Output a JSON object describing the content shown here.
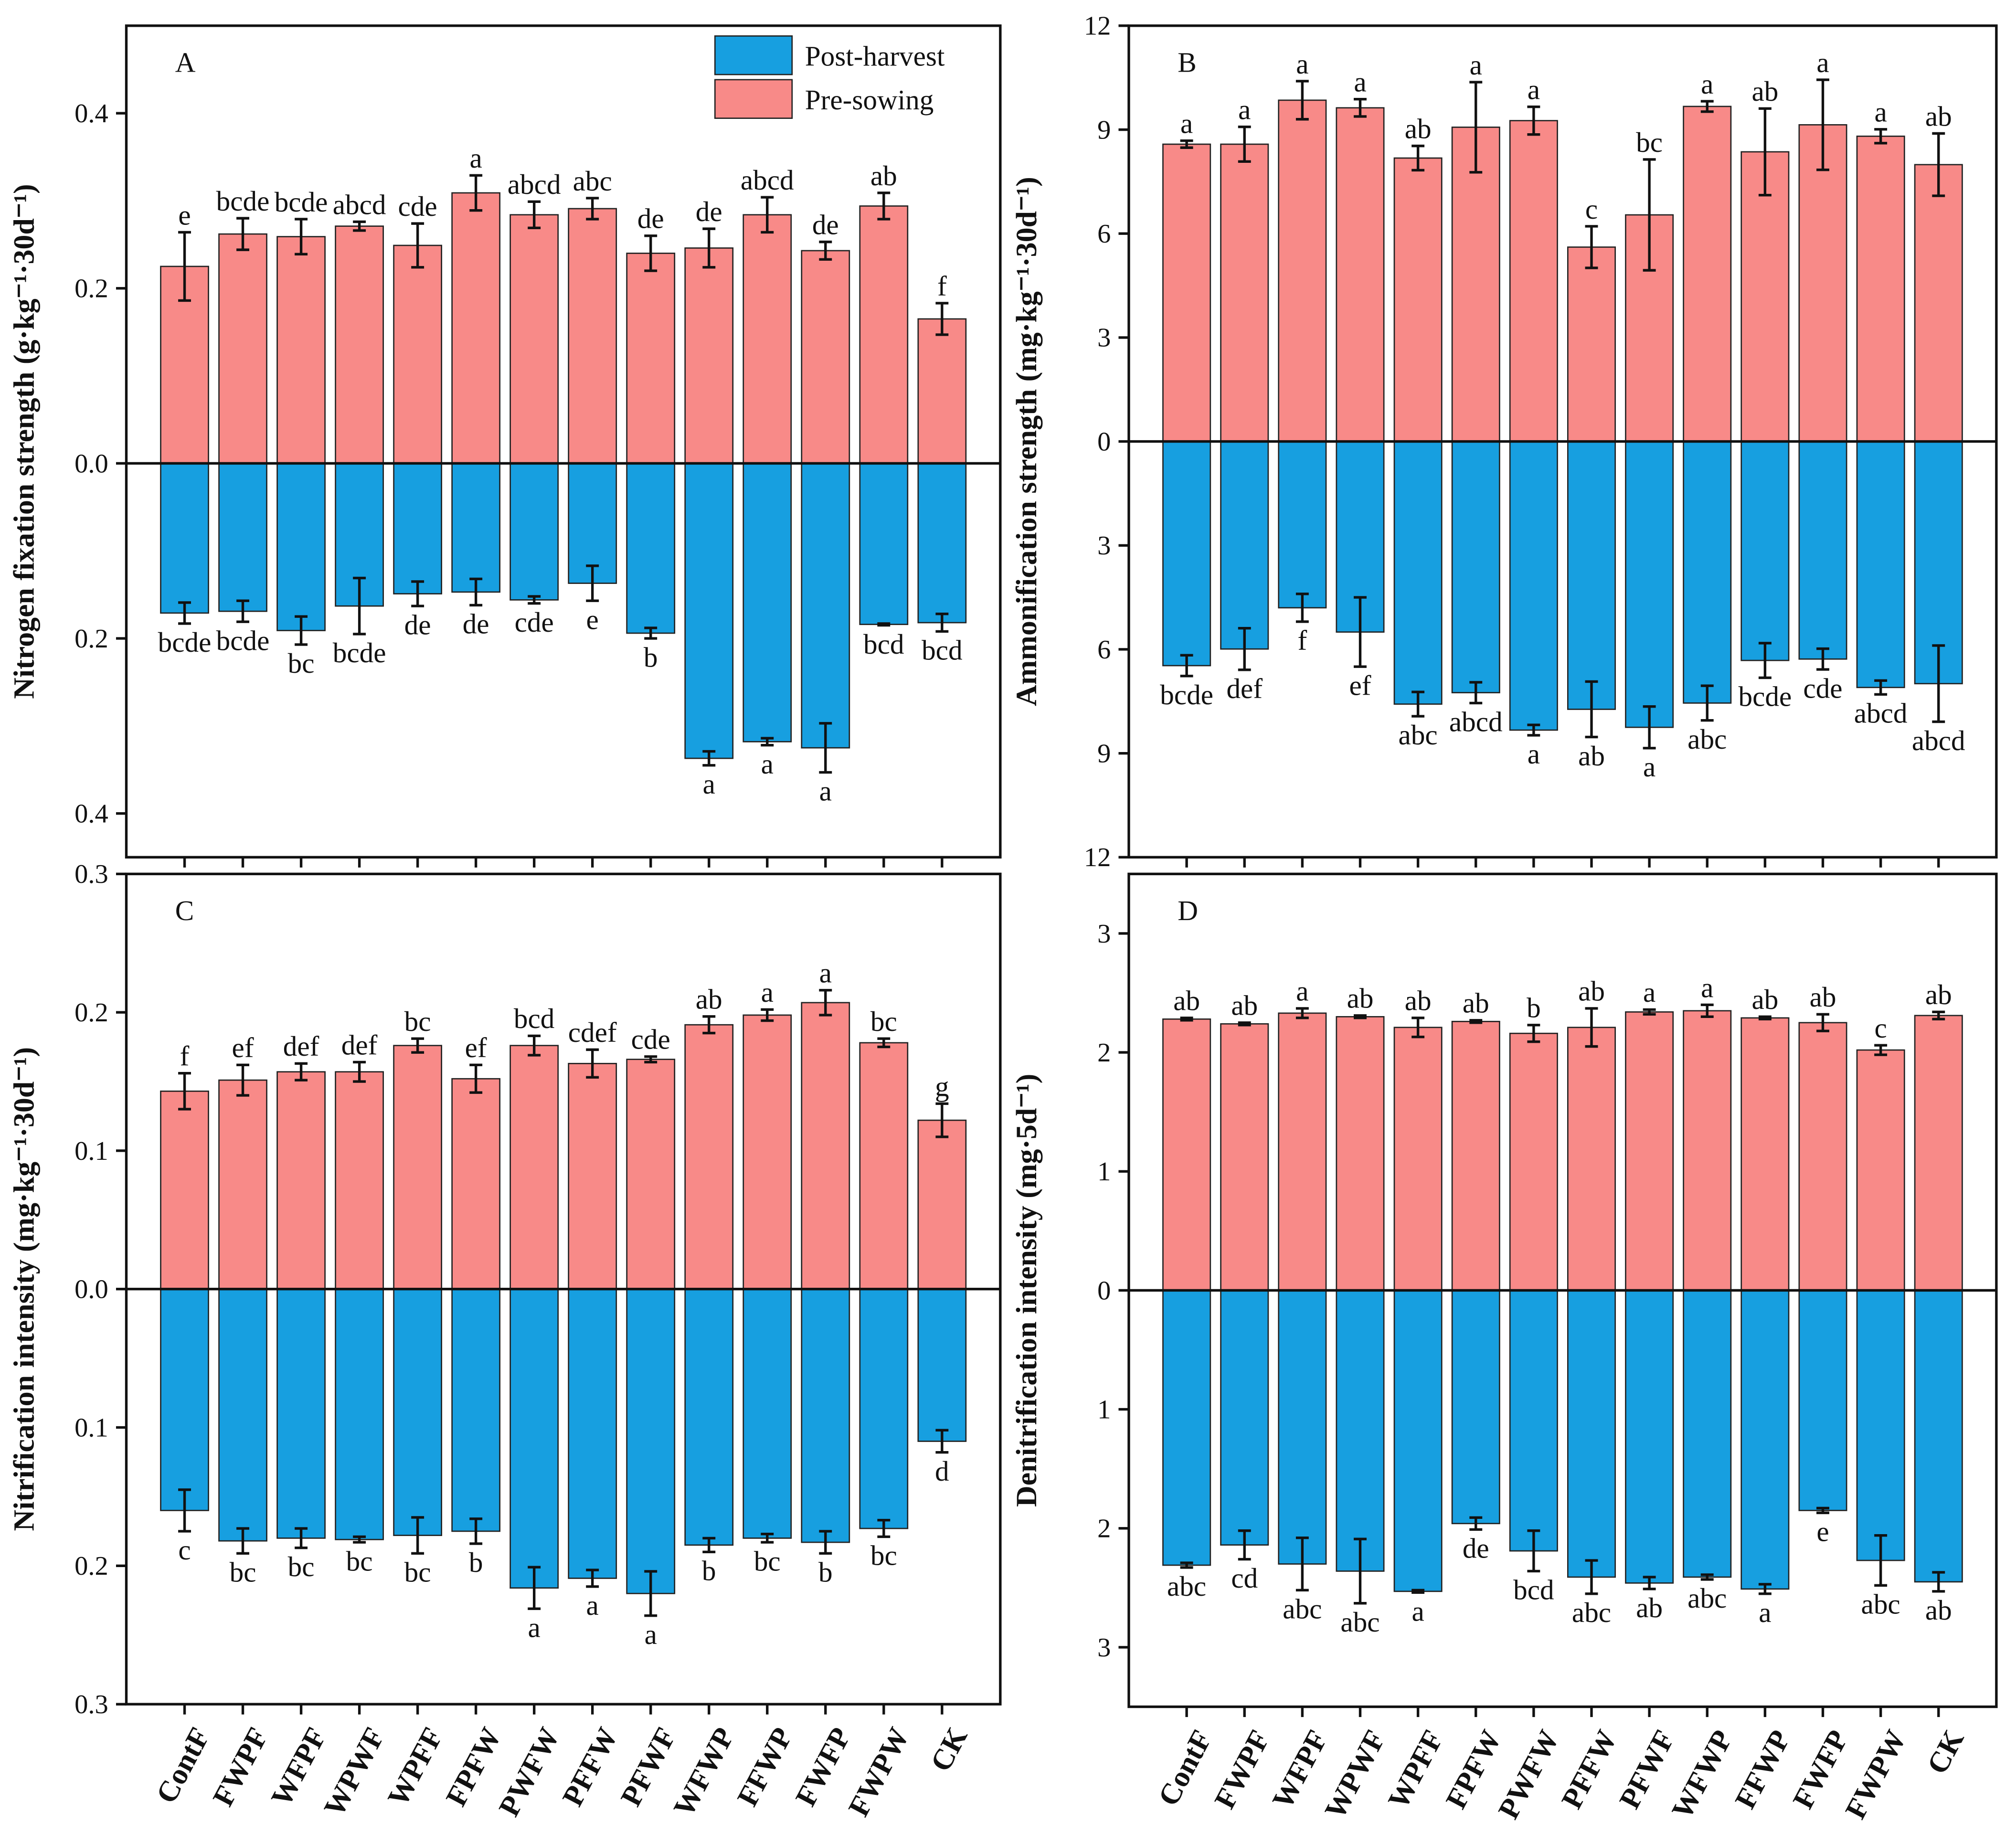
{
  "chart_data": [
    {
      "type": "diverging-bar",
      "label": "A",
      "ylabel": "Nitrogen fixation strength (g·kg⁻¹·30d⁻¹)",
      "ylim": [
        -0.45,
        0.5
      ],
      "yticks": [
        {
          "value": -0.4,
          "label": "0.4"
        },
        {
          "value": -0.2,
          "label": "0.2"
        },
        {
          "value": 0,
          "label": "0.0"
        },
        0.2,
        0.4
      ],
      "legend": "upper right",
      "series": [
        {
          "name": "Post-harvest",
          "color": "#179fe0",
          "values": [
            -0.171,
            -0.169,
            -0.191,
            -0.163,
            -0.149,
            -0.147,
            -0.156,
            -0.137,
            -0.194,
            -0.337,
            -0.318,
            -0.325,
            -0.184,
            -0.182
          ],
          "errors": [
            0.012,
            0.012,
            0.016,
            0.032,
            0.014,
            0.015,
            0.004,
            0.02,
            0.006,
            0.008,
            0.004,
            0.028,
            0.001,
            0.01
          ],
          "letters": [
            "bcde",
            "bcde",
            "bc",
            "bcde",
            "de",
            "de",
            "cde",
            "e",
            "b",
            "a",
            "a",
            "a",
            "bcd",
            "bcd"
          ]
        },
        {
          "name": "Pre-sowing",
          "color": "#f88a88",
          "values": [
            0.225,
            0.262,
            0.259,
            0.271,
            0.249,
            0.309,
            0.284,
            0.291,
            0.24,
            0.246,
            0.284,
            0.243,
            0.294,
            0.165
          ],
          "errors": [
            0.039,
            0.018,
            0.02,
            0.005,
            0.025,
            0.02,
            0.015,
            0.012,
            0.02,
            0.022,
            0.02,
            0.01,
            0.015,
            0.018
          ],
          "letters": [
            "e",
            "bcde",
            "bcde",
            "abcd",
            "cde",
            "a",
            "abcd",
            "abc",
            "de",
            "de",
            "abcd",
            "de",
            "ab",
            "f"
          ]
        }
      ]
    },
    {
      "type": "diverging-bar",
      "label": "B",
      "ylabel": "Ammonification strength (mg·kg⁻¹·30d⁻¹)",
      "ylim": [
        -12,
        12
      ],
      "yticks": [
        {
          "value": -12,
          "label": "12"
        },
        {
          "value": -9,
          "label": "9"
        },
        {
          "value": -6,
          "label": "6"
        },
        {
          "value": -3,
          "label": "3"
        },
        0,
        3,
        6,
        9,
        12
      ],
      "series": [
        {
          "color": "#179fe0",
          "values": [
            -6.47,
            -5.99,
            -4.8,
            -5.5,
            -7.58,
            -7.25,
            -8.33,
            -7.73,
            -8.25,
            -7.55,
            -6.32,
            -6.28,
            -7.1,
            -6.99
          ],
          "errors": [
            0.3,
            0.6,
            0.4,
            1.0,
            0.35,
            0.3,
            0.15,
            0.8,
            0.6,
            0.5,
            0.5,
            0.3,
            0.2,
            1.1
          ],
          "letters": [
            "bcde",
            "def",
            "f",
            "ef",
            "abc",
            "abcd",
            "a",
            "ab",
            "a",
            "abc",
            "bcde",
            "cde",
            "abcd",
            "abcd"
          ]
        },
        {
          "color": "#f88a88",
          "values": [
            8.58,
            8.58,
            9.85,
            9.63,
            8.18,
            9.07,
            9.26,
            5.61,
            6.54,
            9.67,
            8.36,
            9.14,
            8.81,
            7.99
          ],
          "errors": [
            0.1,
            0.5,
            0.55,
            0.25,
            0.35,
            1.3,
            0.4,
            0.6,
            1.6,
            0.15,
            1.25,
            1.3,
            0.2,
            0.9
          ],
          "letters": [
            "a",
            "a",
            "a",
            "a",
            "ab",
            "a",
            "a",
            "c",
            "bc",
            "a",
            "ab",
            "a",
            "a",
            "ab"
          ]
        }
      ]
    },
    {
      "type": "diverging-bar",
      "label": "C",
      "ylabel": "Nitrification intensity (mg·kg⁻¹·30d⁻¹)",
      "categories": [
        "ContF",
        "FWPF",
        "WFPF",
        "WPWF",
        "WPFF",
        "FPFW",
        "PWFW",
        "PFFW",
        "PFWF",
        "WFWP",
        "FFWP",
        "FWFP",
        "FWPW",
        "CK"
      ],
      "ylim": [
        -0.3,
        0.3
      ],
      "yticks": [
        {
          "value": -0.3,
          "label": "0.3"
        },
        {
          "value": -0.2,
          "label": "0.2"
        },
        {
          "value": -0.1,
          "label": "0.1"
        },
        {
          "value": 0,
          "label": "0.0"
        },
        0.1,
        0.2,
        0.3
      ],
      "series": [
        {
          "color": "#179fe0",
          "values": [
            -0.16,
            -0.182,
            -0.18,
            -0.181,
            -0.178,
            -0.175,
            -0.216,
            -0.209,
            -0.22,
            -0.185,
            -0.18,
            -0.183,
            -0.173,
            -0.11
          ],
          "errors": [
            0.015,
            0.009,
            0.007,
            0.002,
            0.013,
            0.009,
            0.015,
            0.006,
            0.016,
            0.005,
            0.003,
            0.008,
            0.006,
            0.008
          ],
          "letters": [
            "c",
            "bc",
            "bc",
            "bc",
            "bc",
            "b",
            "a",
            "a",
            "a",
            "b",
            "bc",
            "b",
            "bc",
            "d"
          ]
        },
        {
          "color": "#f88a88",
          "values": [
            0.143,
            0.151,
            0.157,
            0.157,
            0.176,
            0.152,
            0.176,
            0.163,
            0.166,
            0.191,
            0.198,
            0.207,
            0.178,
            0.122
          ],
          "errors": [
            0.013,
            0.011,
            0.006,
            0.007,
            0.005,
            0.01,
            0.007,
            0.01,
            0.002,
            0.006,
            0.004,
            0.009,
            0.003,
            0.012
          ],
          "letters": [
            "f",
            "ef",
            "def",
            "def",
            "bc",
            "ef",
            "bcd",
            "cdef",
            "cde",
            "ab",
            "a",
            "a",
            "bc",
            "g"
          ]
        }
      ]
    },
    {
      "type": "diverging-bar",
      "label": "D",
      "ylabel": "Denitrification intensity (mg·5d⁻¹)",
      "categories": [
        "ContF",
        "FWPF",
        "WFPF",
        "WPWF",
        "WPFF",
        "FPFW",
        "PWFW",
        "PFFW",
        "PFWF",
        "WFWP",
        "FFWP",
        "FWFP",
        "FWPW",
        "CK"
      ],
      "ylim": [
        -3.5,
        3.5
      ],
      "yticks": [
        {
          "value": -3,
          "label": "3"
        },
        {
          "value": -2,
          "label": "2"
        },
        {
          "value": -1,
          "label": "1"
        },
        0,
        1,
        2,
        3
      ],
      "series": [
        {
          "color": "#179fe0",
          "values": [
            -2.31,
            -2.14,
            -2.3,
            -2.36,
            -2.53,
            -1.96,
            -2.19,
            -2.41,
            -2.46,
            -2.41,
            -2.51,
            -1.85,
            -2.27,
            -2.45
          ],
          "errors": [
            0.02,
            0.12,
            0.22,
            0.27,
            0.01,
            0.05,
            0.17,
            0.14,
            0.05,
            0.02,
            0.04,
            0.02,
            0.21,
            0.08
          ],
          "letters": [
            "abc",
            "cd",
            "abc",
            "abc",
            "a",
            "de",
            "bcd",
            "abc",
            "ab",
            "abc",
            "a",
            "e",
            "abc",
            "ab"
          ]
        },
        {
          "color": "#f88a88",
          "values": [
            2.28,
            2.24,
            2.33,
            2.3,
            2.21,
            2.26,
            2.16,
            2.21,
            2.34,
            2.35,
            2.29,
            2.25,
            2.02,
            2.31
          ],
          "errors": [
            0.01,
            0.01,
            0.04,
            0.01,
            0.08,
            0.01,
            0.07,
            0.16,
            0.02,
            0.05,
            0.01,
            0.07,
            0.04,
            0.03
          ],
          "letters": [
            "ab",
            "ab",
            "a",
            "ab",
            "ab",
            "ab",
            "b",
            "ab",
            "a",
            "a",
            "ab",
            "ab",
            "c",
            "ab"
          ]
        }
      ]
    }
  ]
}
